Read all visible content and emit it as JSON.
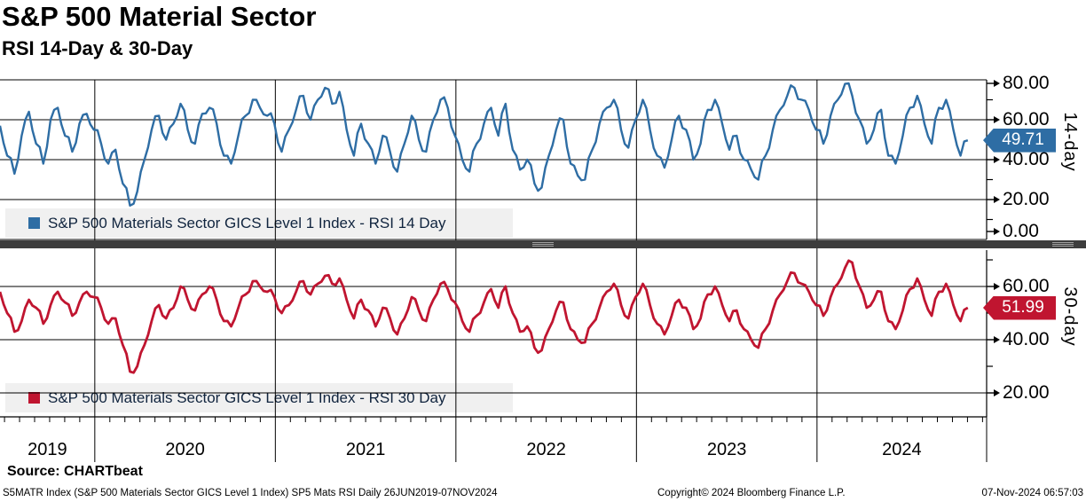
{
  "header": {
    "title": "S&P 500 Material Sector",
    "subtitle": "RSI 14-Day & 30-Day"
  },
  "x_axis": {
    "year_labels": [
      "2019",
      "2020",
      "2021",
      "2022",
      "2023",
      "2024"
    ],
    "gridline_years": [
      2020,
      2021,
      2022,
      2023,
      2024
    ]
  },
  "chart_data": [
    {
      "type": "line",
      "name": "RSI 14 Day",
      "legend": "S&P 500 Materials Sector GICS Level 1 Index - RSI 14 Day",
      "axis_title": "14-day",
      "color": "#2e6da4",
      "last_value": 49.71,
      "last_value_label": "49.71",
      "ylim": [
        0,
        80
      ],
      "y_ticks_major": [
        {
          "v": 80,
          "label": "80.00"
        },
        {
          "v": 60,
          "label": "60.00"
        },
        {
          "v": 40,
          "label": "40.00"
        },
        {
          "v": 20,
          "label": "20.00"
        },
        {
          "v": 0,
          "label": "0.00"
        }
      ],
      "y_ticks_minor": [
        70,
        50,
        30,
        10
      ],
      "x_start": 2019.475,
      "x_step": 0.04,
      "values": [
        57,
        42,
        33,
        52,
        64,
        48,
        38,
        60,
        66,
        52,
        44,
        58,
        63,
        55,
        48,
        38,
        45,
        28,
        17,
        24,
        40,
        55,
        62,
        50,
        58,
        68,
        55,
        48,
        63,
        66,
        58,
        42,
        38,
        52,
        62,
        70,
        66,
        62,
        58,
        44,
        55,
        65,
        72,
        60,
        70,
        76,
        68,
        74,
        55,
        42,
        58,
        48,
        38,
        52,
        44,
        34,
        48,
        62,
        50,
        44,
        60,
        70,
        66,
        52,
        40,
        34,
        48,
        58,
        66,
        52,
        68,
        45,
        35,
        40,
        28,
        26,
        42,
        55,
        60,
        38,
        32,
        30,
        45,
        58,
        66,
        70,
        55,
        46,
        60,
        70,
        55,
        42,
        36,
        50,
        62,
        55,
        40,
        48,
        65,
        70,
        58,
        45,
        52,
        40,
        35,
        30,
        42,
        55,
        65,
        72,
        76,
        70,
        65,
        55,
        48,
        62,
        70,
        78,
        72,
        60,
        48,
        55,
        65,
        42,
        38,
        52,
        66,
        72,
        58,
        48,
        66,
        70,
        55,
        42,
        49.71
      ]
    },
    {
      "type": "line",
      "name": "RSI 30 Day",
      "legend": "S&P 500 Materials Sector GICS Level 1 Index - RSI 30 Day",
      "axis_title": "30-day",
      "color": "#c01530",
      "last_value": 51.99,
      "last_value_label": "51.99",
      "ylim": [
        20,
        70
      ],
      "y_ticks_major": [
        {
          "v": 60,
          "label": "60.00"
        },
        {
          "v": 40,
          "label": "40.00"
        },
        {
          "v": 20,
          "label": "20.00"
        }
      ],
      "y_ticks_minor": [
        70,
        50,
        30
      ],
      "x_start": 2019.475,
      "x_step": 0.04,
      "values": [
        58,
        50,
        43,
        47,
        55,
        52,
        46,
        53,
        58,
        54,
        49,
        54,
        58,
        56,
        52,
        46,
        48,
        38,
        28,
        30,
        38,
        47,
        53,
        48,
        52,
        60,
        55,
        51,
        57,
        60,
        55,
        47,
        45,
        52,
        57,
        62,
        60,
        58,
        56,
        50,
        53,
        58,
        62,
        57,
        61,
        64,
        61,
        63,
        55,
        48,
        55,
        51,
        45,
        52,
        48,
        42,
        48,
        56,
        51,
        47,
        55,
        61,
        59,
        54,
        47,
        43,
        49,
        54,
        59,
        52,
        60,
        50,
        43,
        45,
        37,
        36,
        44,
        51,
        54,
        44,
        40,
        39,
        46,
        52,
        58,
        61,
        53,
        48,
        56,
        61,
        53,
        46,
        42,
        49,
        55,
        52,
        44,
        48,
        57,
        60,
        53,
        47,
        51,
        44,
        40,
        37,
        44,
        51,
        57,
        62,
        65,
        61,
        58,
        53,
        49,
        56,
        61,
        67,
        69,
        60,
        52,
        55,
        58,
        47,
        44,
        51,
        59,
        63,
        55,
        49,
        58,
        61,
        53,
        47,
        51.99
      ]
    }
  ],
  "footer": {
    "source": "Source: CHARTbeat",
    "ticker_line": "S5MATR Index (S&P 500 Materials Sector GICS Level 1 Index) SP5 Mats RSI  Daily 26JUN2019-07NOV2024",
    "copyright": "Copyright© 2024 Bloomberg Finance L.P.",
    "timestamp": "07-Nov-2024 06:57:03"
  }
}
